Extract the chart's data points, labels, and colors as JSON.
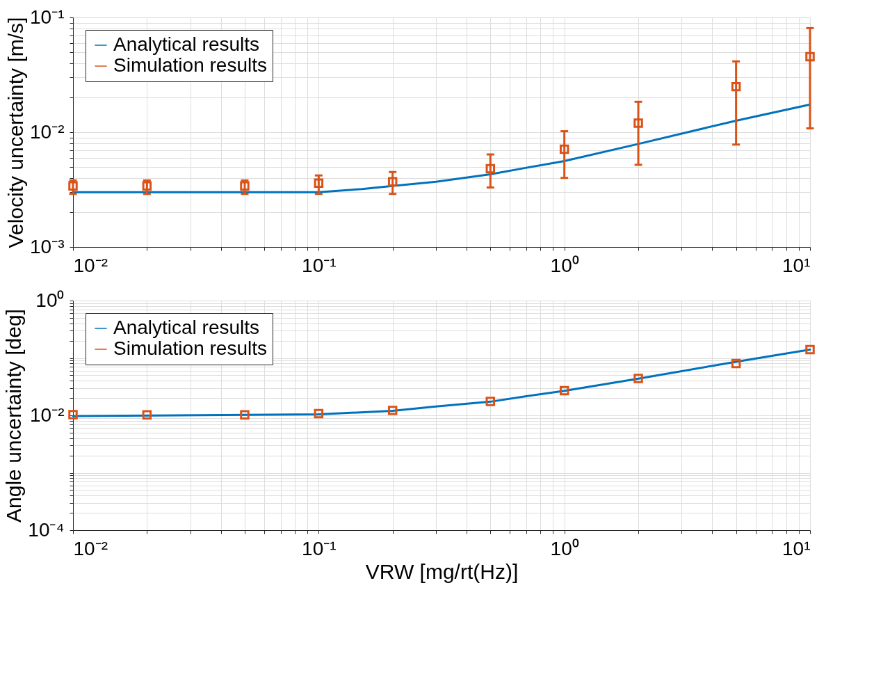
{
  "chart_data": [
    {
      "type": "line",
      "ylabel": "Velocity uncertainty [m/s]",
      "log": "xy",
      "grid": true,
      "legend": "top left",
      "xlim": [
        0.01,
        10
      ],
      "ylim": [
        0.001,
        0.1
      ],
      "xticks": [
        {
          "value": 0.01,
          "label": "10⁻²"
        },
        {
          "value": 0.02,
          "label": null
        },
        {
          "value": 0.03,
          "label": null
        },
        {
          "value": 0.04,
          "label": null
        },
        {
          "value": 0.05,
          "label": null
        },
        {
          "value": 0.06,
          "label": null
        },
        {
          "value": 0.07,
          "label": null
        },
        {
          "value": 0.08,
          "label": null
        },
        {
          "value": 0.09,
          "label": null
        },
        {
          "value": 0.1,
          "label": "10⁻¹"
        },
        {
          "value": 0.2,
          "label": null
        },
        {
          "value": 0.3,
          "label": null
        },
        {
          "value": 0.4,
          "label": null
        },
        {
          "value": 0.5,
          "label": null
        },
        {
          "value": 0.6,
          "label": null
        },
        {
          "value": 0.7,
          "label": null
        },
        {
          "value": 0.8,
          "label": null
        },
        {
          "value": 0.9,
          "label": null
        },
        {
          "value": 1,
          "label": "10⁰"
        },
        {
          "value": 2,
          "label": null
        },
        {
          "value": 3,
          "label": null
        },
        {
          "value": 4,
          "label": null
        },
        {
          "value": 5,
          "label": null
        },
        {
          "value": 6,
          "label": null
        },
        {
          "value": 7,
          "label": null
        },
        {
          "value": 8,
          "label": null
        },
        {
          "value": 9,
          "label": null
        },
        {
          "value": 10,
          "label": "10¹"
        }
      ],
      "yticks": [
        {
          "value": 0.001,
          "label": "10⁻³"
        },
        {
          "value": 0.002,
          "label": null
        },
        {
          "value": 0.003,
          "label": null
        },
        {
          "value": 0.004,
          "label": null
        },
        {
          "value": 0.005,
          "label": null
        },
        {
          "value": 0.006,
          "label": null
        },
        {
          "value": 0.007,
          "label": null
        },
        {
          "value": 0.008,
          "label": null
        },
        {
          "value": 0.009,
          "label": null
        },
        {
          "value": 0.01,
          "label": "10⁻²"
        },
        {
          "value": 0.02,
          "label": null
        },
        {
          "value": 0.03,
          "label": null
        },
        {
          "value": 0.04,
          "label": null
        },
        {
          "value": 0.05,
          "label": null
        },
        {
          "value": 0.06,
          "label": null
        },
        {
          "value": 0.07,
          "label": null
        },
        {
          "value": 0.08,
          "label": null
        },
        {
          "value": 0.09,
          "label": null
        },
        {
          "value": 0.1,
          "label": "10⁻¹"
        }
      ],
      "series": [
        {
          "name": "Analytical results",
          "type": "line",
          "color": "#0072bd",
          "line_style": "solid",
          "x": [
            0.01,
            0.1,
            0.15,
            0.2,
            0.3,
            0.5,
            0.7,
            1,
            2,
            5,
            10
          ],
          "values": [
            0.003,
            0.003,
            0.0032,
            0.0034,
            0.0037,
            0.0043,
            0.0049,
            0.0056,
            0.0079,
            0.0126,
            0.0174
          ]
        },
        {
          "name": "Simulation results",
          "type": "scatter",
          "color": "#d95319",
          "marker": "square",
          "x": [
            0.01,
            0.02,
            0.05,
            0.1,
            0.2,
            0.5,
            1,
            2,
            5,
            10
          ],
          "values": [
            0.0034,
            0.0034,
            0.0034,
            0.0036,
            0.0037,
            0.0048,
            0.0071,
            0.012,
            0.0249,
            0.0455
          ],
          "errors": [
            [
              0.0029,
              0.0038
            ],
            [
              0.0029,
              0.0038
            ],
            [
              0.0029,
              0.0038
            ],
            [
              0.0029,
              0.0042
            ],
            [
              0.0029,
              0.0045
            ],
            [
              0.0033,
              0.0064
            ],
            [
              0.004,
              0.0102
            ],
            [
              0.0052,
              0.0184
            ],
            [
              0.0078,
              0.0414
            ],
            [
              0.0108,
              0.0807
            ]
          ]
        }
      ]
    },
    {
      "type": "line",
      "xlabel": "VRW [mg/rt(Hz)]",
      "ylabel": "Angle uncertainty [deg]",
      "log": "xy",
      "grid": true,
      "legend": "top left",
      "xlim": [
        0.01,
        10
      ],
      "ylim": [
        0.0001,
        1
      ],
      "xticks": [
        {
          "value": 0.01,
          "label": "10⁻²"
        },
        {
          "value": 0.02,
          "label": null
        },
        {
          "value": 0.03,
          "label": null
        },
        {
          "value": 0.04,
          "label": null
        },
        {
          "value": 0.05,
          "label": null
        },
        {
          "value": 0.06,
          "label": null
        },
        {
          "value": 0.07,
          "label": null
        },
        {
          "value": 0.08,
          "label": null
        },
        {
          "value": 0.09,
          "label": null
        },
        {
          "value": 0.1,
          "label": "10⁻¹"
        },
        {
          "value": 0.2,
          "label": null
        },
        {
          "value": 0.3,
          "label": null
        },
        {
          "value": 0.4,
          "label": null
        },
        {
          "value": 0.5,
          "label": null
        },
        {
          "value": 0.6,
          "label": null
        },
        {
          "value": 0.7,
          "label": null
        },
        {
          "value": 0.8,
          "label": null
        },
        {
          "value": 0.9,
          "label": null
        },
        {
          "value": 1,
          "label": "10⁰"
        },
        {
          "value": 2,
          "label": null
        },
        {
          "value": 3,
          "label": null
        },
        {
          "value": 4,
          "label": null
        },
        {
          "value": 5,
          "label": null
        },
        {
          "value": 6,
          "label": null
        },
        {
          "value": 7,
          "label": null
        },
        {
          "value": 8,
          "label": null
        },
        {
          "value": 9,
          "label": null
        },
        {
          "value": 10,
          "label": "10¹"
        }
      ],
      "yticks": [
        {
          "value": 0.0001,
          "label": "10⁻⁴"
        },
        {
          "value": 0.0002,
          "label": null
        },
        {
          "value": 0.0003,
          "label": null
        },
        {
          "value": 0.0004,
          "label": null
        },
        {
          "value": 0.0005,
          "label": null
        },
        {
          "value": 0.0006,
          "label": null
        },
        {
          "value": 0.0007,
          "label": null
        },
        {
          "value": 0.0008,
          "label": null
        },
        {
          "value": 0.0009,
          "label": null
        },
        {
          "value": 0.001,
          "label": null
        },
        {
          "value": 0.002,
          "label": null
        },
        {
          "value": 0.003,
          "label": null
        },
        {
          "value": 0.004,
          "label": null
        },
        {
          "value": 0.005,
          "label": null
        },
        {
          "value": 0.006,
          "label": null
        },
        {
          "value": 0.007,
          "label": null
        },
        {
          "value": 0.008,
          "label": null
        },
        {
          "value": 0.009,
          "label": null
        },
        {
          "value": 0.01,
          "label": "10⁻²"
        },
        {
          "value": 0.02,
          "label": null
        },
        {
          "value": 0.03,
          "label": null
        },
        {
          "value": 0.04,
          "label": null
        },
        {
          "value": 0.05,
          "label": null
        },
        {
          "value": 0.06,
          "label": null
        },
        {
          "value": 0.07,
          "label": null
        },
        {
          "value": 0.08,
          "label": null
        },
        {
          "value": 0.09,
          "label": null
        },
        {
          "value": 0.1,
          "label": null
        },
        {
          "value": 0.2,
          "label": null
        },
        {
          "value": 0.3,
          "label": null
        },
        {
          "value": 0.4,
          "label": null
        },
        {
          "value": 0.5,
          "label": null
        },
        {
          "value": 0.6,
          "label": null
        },
        {
          "value": 0.7,
          "label": null
        },
        {
          "value": 0.8,
          "label": null
        },
        {
          "value": 0.9,
          "label": null
        },
        {
          "value": 1,
          "label": "10⁰"
        }
      ],
      "series": [
        {
          "name": "Analytical results",
          "type": "line",
          "color": "#0072bd",
          "line_style": "solid",
          "x": [
            0.01,
            0.1,
            0.2,
            0.3,
            0.5,
            0.7,
            1,
            2,
            5,
            10
          ],
          "values": [
            0.0097,
            0.0104,
            0.012,
            0.0143,
            0.0173,
            0.0215,
            0.0267,
            0.0436,
            0.086,
            0.14
          ]
        },
        {
          "name": "Simulation results",
          "type": "scatter",
          "color": "#d95319",
          "marker": "square",
          "x": [
            0.01,
            0.02,
            0.05,
            0.1,
            0.2,
            0.5,
            1,
            2,
            5,
            10
          ],
          "values": [
            0.0103,
            0.0102,
            0.0102,
            0.0107,
            0.0122,
            0.0175,
            0.027,
            0.044,
            0.08,
            0.14
          ]
        }
      ]
    }
  ]
}
